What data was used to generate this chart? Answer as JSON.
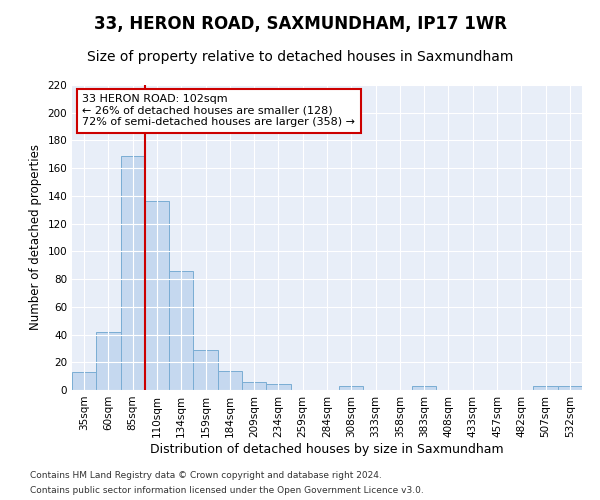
{
  "title": "33, HERON ROAD, SAXMUNDHAM, IP17 1WR",
  "subtitle": "Size of property relative to detached houses in Saxmundham",
  "xlabel": "Distribution of detached houses by size in Saxmundham",
  "ylabel": "Number of detached properties",
  "categories": [
    "35sqm",
    "60sqm",
    "85sqm",
    "110sqm",
    "134sqm",
    "159sqm",
    "184sqm",
    "209sqm",
    "234sqm",
    "259sqm",
    "284sqm",
    "308sqm",
    "333sqm",
    "358sqm",
    "383sqm",
    "408sqm",
    "433sqm",
    "457sqm",
    "482sqm",
    "507sqm",
    "532sqm"
  ],
  "values": [
    13,
    42,
    169,
    136,
    86,
    29,
    14,
    6,
    4,
    0,
    0,
    3,
    0,
    0,
    3,
    0,
    0,
    0,
    0,
    3,
    3
  ],
  "bar_color": "#c5d8ef",
  "bar_edge_color": "#7aadd4",
  "vline_color": "#cc0000",
  "annotation_text": "33 HERON ROAD: 102sqm\n← 26% of detached houses are smaller (128)\n72% of semi-detached houses are larger (358) →",
  "annotation_box_color": "#ffffff",
  "annotation_box_edge_color": "#cc0000",
  "ylim": [
    0,
    220
  ],
  "yticks": [
    0,
    20,
    40,
    60,
    80,
    100,
    120,
    140,
    160,
    180,
    200,
    220
  ],
  "background_color": "#e8eef8",
  "footer1": "Contains HM Land Registry data © Crown copyright and database right 2024.",
  "footer2": "Contains public sector information licensed under the Open Government Licence v3.0.",
  "title_fontsize": 12,
  "subtitle_fontsize": 10,
  "xlabel_fontsize": 9,
  "ylabel_fontsize": 8.5,
  "tick_fontsize": 7.5,
  "footer_fontsize": 6.5
}
